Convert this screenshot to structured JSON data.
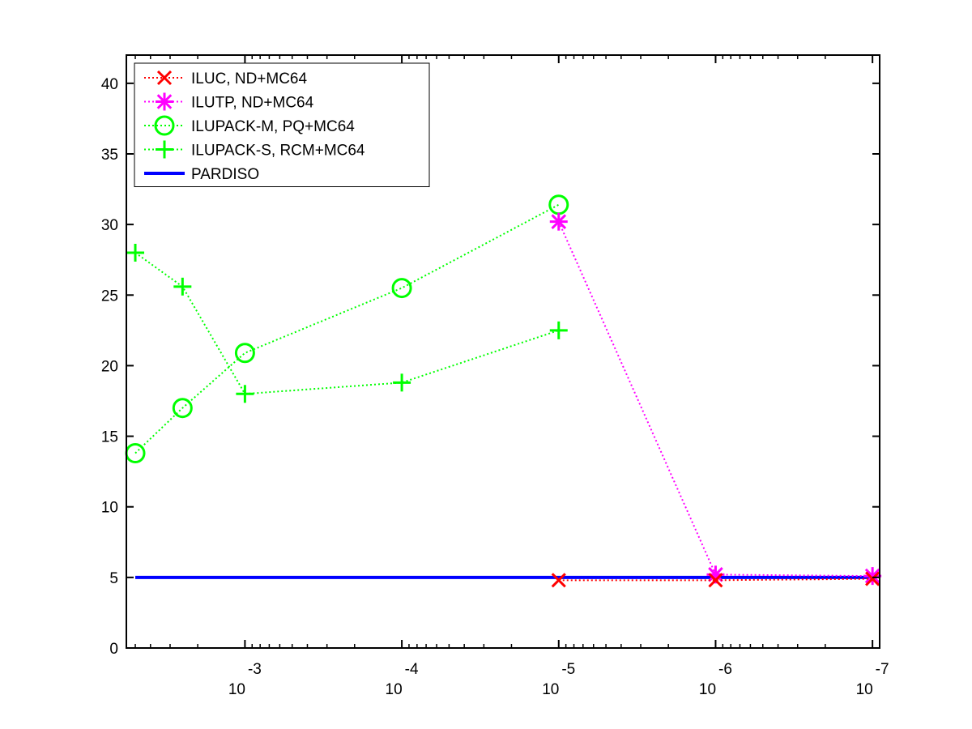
{
  "chart_data": {
    "type": "line",
    "title": "",
    "xlabel": "",
    "ylabel": "",
    "x_scale": "log-reversed",
    "xlim": [
      0.0057,
      9e-08
    ],
    "ylim": [
      0,
      42
    ],
    "y_ticks": [
      0,
      5,
      10,
      15,
      20,
      25,
      30,
      35,
      40
    ],
    "y_tick_labels": [
      "0",
      "5",
      "10",
      "15",
      "20",
      "25",
      "30",
      "35",
      "40"
    ],
    "x_ticks": [
      0.001,
      0.0001,
      1e-05,
      1e-06,
      1e-07
    ],
    "x_tick_labels": [
      {
        "base": "10",
        "exp": "-3"
      },
      {
        "base": "10",
        "exp": "-4"
      },
      {
        "base": "10",
        "exp": "-5"
      },
      {
        "base": "10",
        "exp": "-6"
      },
      {
        "base": "10",
        "exp": "-7"
      }
    ],
    "grid": false,
    "legend_position": "top-left",
    "series": [
      {
        "name": "ILUC,  ND+MC64",
        "color": "#ff0000",
        "marker": "x",
        "line": "dotted",
        "x": [
          1e-05,
          1e-06,
          1e-07
        ],
        "y": [
          4.8,
          4.8,
          4.9
        ]
      },
      {
        "name": "ILUTP,  ND+MC64",
        "color": "#ff00ff",
        "marker": "asterisk",
        "line": "dotted",
        "x": [
          1e-05,
          1e-06,
          1e-07
        ],
        "y": [
          30.2,
          5.2,
          5.1
        ]
      },
      {
        "name": "ILUPACK-M, PQ+MC64",
        "color": "#00ff00",
        "marker": "circle",
        "line": "dotted",
        "x": [
          0.005,
          0.0025,
          0.001,
          0.0001,
          1e-05
        ],
        "y": [
          13.8,
          17.0,
          20.9,
          25.5,
          31.4
        ]
      },
      {
        "name": "ILUPACK-S, RCM+MC64",
        "color": "#00ff00",
        "marker": "plus",
        "line": "dotted",
        "x": [
          0.005,
          0.0025,
          0.001,
          0.0001,
          1e-05
        ],
        "y": [
          28.0,
          25.6,
          18.0,
          18.8,
          22.5
        ]
      },
      {
        "name": "PARDISO",
        "color": "#0000ff",
        "marker": "none",
        "line": "solid",
        "x": [
          0.005,
          1e-07
        ],
        "y": [
          5.0,
          5.0
        ]
      }
    ]
  }
}
